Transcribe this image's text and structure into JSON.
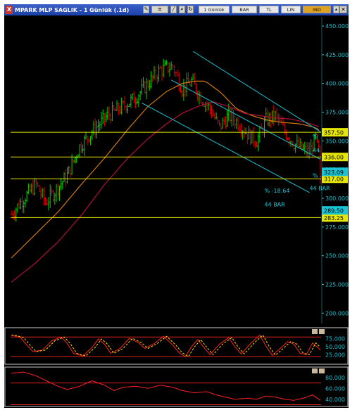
{
  "window": {
    "title": "MPARK MLP SAGLIK - 1 Günlük (.1d)",
    "close_glyph": "X",
    "toolbar": {
      "period_label": "1 Günlük",
      "chart_type_label": "BAR",
      "currency_label": "TL",
      "scale_label": "LIN",
      "indicator_label": "IND",
      "icon_names": [
        "pencil-icon",
        "fibonacci-icon",
        "line-tool-icon",
        "zoom-icon",
        "refresh-icon"
      ]
    }
  },
  "colors": {
    "background": "#000000",
    "up_bar": "#00d100",
    "down_bar": "#d40000",
    "ma_fast": "#d07a10",
    "ma_slow": "#b0103c",
    "channel": "#19c3d3",
    "horizontal_level": "#e6e600",
    "axis_text": "#19c3d3",
    "osc_line": "#ff2020",
    "osc_signal": "#ffd800"
  },
  "chart_data": [
    {
      "type": "bar",
      "title": "MPARK MLP SAGLIK - 1 Günlük (.1d)",
      "y_axis": {
        "ticks": [
          200,
          225,
          250,
          275,
          300,
          325,
          350,
          375,
          400,
          425,
          450
        ],
        "tick_labels": [
          "200.000",
          "225.000",
          "250.000",
          "275.000",
          "300.000",
          "325.000",
          "350.000",
          "375.000",
          "400.000",
          "425.000",
          "450.000"
        ],
        "ylim": [
          191,
          458
        ],
        "position": "right"
      },
      "price_bars": {
        "n": 200,
        "anchors": [
          [
            0,
            286
          ],
          [
            8,
            300
          ],
          [
            16,
            312
          ],
          [
            22,
            296
          ],
          [
            28,
            306
          ],
          [
            36,
            320
          ],
          [
            44,
            345
          ],
          [
            52,
            358
          ],
          [
            62,
            372
          ],
          [
            72,
            380
          ],
          [
            80,
            388
          ],
          [
            88,
            400
          ],
          [
            96,
            412
          ],
          [
            104,
            415
          ],
          [
            110,
            395
          ],
          [
            116,
            402
          ],
          [
            122,
            388
          ],
          [
            128,
            378
          ],
          [
            134,
            362
          ],
          [
            140,
            372
          ],
          [
            146,
            366
          ],
          [
            152,
            356
          ],
          [
            158,
            350
          ],
          [
            164,
            368
          ],
          [
            170,
            372
          ],
          [
            176,
            358
          ],
          [
            182,
            348
          ],
          [
            188,
            342
          ],
          [
            192,
            340
          ],
          [
            196,
            352
          ],
          [
            199,
            330
          ]
        ],
        "last_close": 317.0,
        "note": "Daily OHLC bars, approximated from the screenshot"
      },
      "moving_averages": [
        {
          "role": "fast",
          "points": [
            [
              0,
              248
            ],
            [
              15,
              268
            ],
            [
              30,
              288
            ],
            [
              45,
              312
            ],
            [
              60,
              335
            ],
            [
              75,
              360
            ],
            [
              88,
              380
            ],
            [
              100,
              393
            ],
            [
              110,
              400
            ],
            [
              118,
              402
            ],
            [
              125,
              402
            ],
            [
              135,
              392
            ],
            [
              145,
              378
            ],
            [
              155,
              372
            ],
            [
              165,
              368
            ],
            [
              175,
              366
            ],
            [
              185,
              365
            ],
            [
              195,
              362
            ],
            [
              199,
              359
            ]
          ]
        },
        {
          "role": "slow",
          "points": [
            [
              0,
              227
            ],
            [
              15,
              243
            ],
            [
              30,
              262
            ],
            [
              45,
              285
            ],
            [
              60,
              312
            ],
            [
              75,
              335
            ],
            [
              88,
              352
            ],
            [
              100,
              365
            ],
            [
              110,
              374
            ],
            [
              120,
              380
            ],
            [
              130,
              384
            ],
            [
              140,
              380
            ],
            [
              150,
              374
            ],
            [
              160,
              372
            ],
            [
              170,
              370
            ],
            [
              180,
              369
            ],
            [
              190,
              366
            ],
            [
              199,
              362
            ]
          ]
        }
      ],
      "channels": [
        {
          "upper": [
            [
              117,
              428
            ],
            [
              199,
              358
            ]
          ],
          "lower": [
            [
              84,
              383
            ],
            [
              192,
              305
            ]
          ],
          "middle": [
            [
              103,
              403
            ],
            [
              199,
              334
            ]
          ]
        }
      ],
      "horizontal_levels": [
        {
          "value": 357.5,
          "label": "357.50"
        },
        {
          "value": 336.0,
          "label": "336.00"
        },
        {
          "value": 317.0,
          "label": "317.00"
        },
        {
          "value": 283.25,
          "label": "283.25"
        }
      ],
      "price_tags": [
        {
          "value": 323.09,
          "label": "323.09"
        },
        {
          "value": 289.5,
          "label": "289.50"
        }
      ],
      "annotations": [
        {
          "text": "% -18.64",
          "x": 163,
          "y": 305
        },
        {
          "text": "44 BAR",
          "x": 163,
          "y": 293
        },
        {
          "text": "44 BAR",
          "x": 192,
          "y": 307
        },
        {
          "text": "% -",
          "x": 194,
          "y": 318
        },
        {
          "text": "%",
          "x": 194,
          "y": 352
        },
        {
          "text": "44",
          "x": 194,
          "y": 340
        }
      ]
    },
    {
      "type": "line",
      "name": "stochastic",
      "y_axis": {
        "ticks": [
          25,
          50,
          75
        ],
        "tick_labels": [
          "25.000",
          "50.000",
          "75.000"
        ],
        "ylim": [
          5,
          100
        ]
      },
      "levels": [
        20,
        80
      ],
      "k_line": {
        "anchors": [
          [
            0,
            86
          ],
          [
            6,
            78
          ],
          [
            10,
            55
          ],
          [
            14,
            35
          ],
          [
            20,
            40
          ],
          [
            26,
            68
          ],
          [
            32,
            80
          ],
          [
            36,
            60
          ],
          [
            40,
            30
          ],
          [
            46,
            22
          ],
          [
            52,
            48
          ],
          [
            56,
            74
          ],
          [
            60,
            58
          ],
          [
            64,
            30
          ],
          [
            70,
            45
          ],
          [
            76,
            76
          ],
          [
            82,
            62
          ],
          [
            86,
            45
          ],
          [
            92,
            60
          ],
          [
            98,
            82
          ],
          [
            104,
            55
          ],
          [
            108,
            32
          ],
          [
            112,
            20
          ],
          [
            116,
            50
          ],
          [
            120,
            72
          ],
          [
            124,
            48
          ],
          [
            128,
            26
          ],
          [
            134,
            58
          ],
          [
            140,
            78
          ],
          [
            144,
            50
          ],
          [
            148,
            28
          ],
          [
            154,
            60
          ],
          [
            160,
            86
          ],
          [
            164,
            52
          ],
          [
            168,
            24
          ],
          [
            172,
            40
          ],
          [
            178,
            66
          ],
          [
            182,
            58
          ],
          [
            186,
            30
          ],
          [
            190,
            26
          ],
          [
            194,
            62
          ],
          [
            199,
            40
          ]
        ]
      },
      "d_line": {
        "lag": 2
      }
    },
    {
      "type": "line",
      "name": "rsi",
      "y_axis": {
        "ticks": [
          40,
          60,
          80
        ],
        "tick_labels": [
          "40.000",
          "60.000",
          "80.000"
        ],
        "ylim": [
          32,
          94
        ]
      },
      "levels": [
        70,
        30
      ],
      "line": {
        "anchors": [
          [
            0,
            88
          ],
          [
            8,
            90
          ],
          [
            16,
            83
          ],
          [
            24,
            72
          ],
          [
            30,
            64
          ],
          [
            36,
            58
          ],
          [
            44,
            64
          ],
          [
            52,
            74
          ],
          [
            60,
            66
          ],
          [
            66,
            56
          ],
          [
            72,
            62
          ],
          [
            80,
            64
          ],
          [
            88,
            60
          ],
          [
            96,
            66
          ],
          [
            104,
            62
          ],
          [
            110,
            56
          ],
          [
            118,
            52
          ],
          [
            126,
            54
          ],
          [
            132,
            48
          ],
          [
            138,
            44
          ],
          [
            144,
            40
          ],
          [
            152,
            42
          ],
          [
            158,
            40
          ],
          [
            164,
            46
          ],
          [
            170,
            44
          ],
          [
            176,
            40
          ],
          [
            182,
            38
          ],
          [
            188,
            42
          ],
          [
            194,
            48
          ],
          [
            199,
            38
          ]
        ]
      }
    }
  ]
}
